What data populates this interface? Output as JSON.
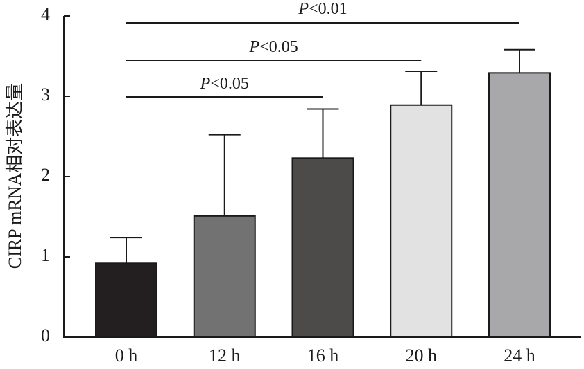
{
  "chart_data": {
    "type": "bar",
    "categories": [
      "0 h",
      "12 h",
      "16 h",
      "20 h",
      "24 h"
    ],
    "values": [
      0.92,
      1.51,
      2.23,
      2.89,
      3.29
    ],
    "error_upper": [
      1.24,
      2.52,
      2.84,
      3.31,
      3.58
    ],
    "ylabel": "CIRP mRNA相对表达量",
    "ylim": [
      0,
      4
    ],
    "yticks": [
      "0",
      "1",
      "2",
      "3",
      "4"
    ],
    "bar_colors": [
      "#231f20",
      "#737272",
      "#4d4a4a",
      "#e2e2e2",
      "#a8a7a9"
    ],
    "grid": false,
    "significance": [
      {
        "from": "0 h",
        "to": "16 h",
        "label_prefix": "P",
        "label_rest": "<0.05"
      },
      {
        "from": "0 h",
        "to": "20 h",
        "label_prefix": "P",
        "label_rest": "<0.05"
      },
      {
        "from": "0 h",
        "to": "24 h",
        "label_prefix": "P",
        "label_rest": "<0.01"
      }
    ]
  }
}
